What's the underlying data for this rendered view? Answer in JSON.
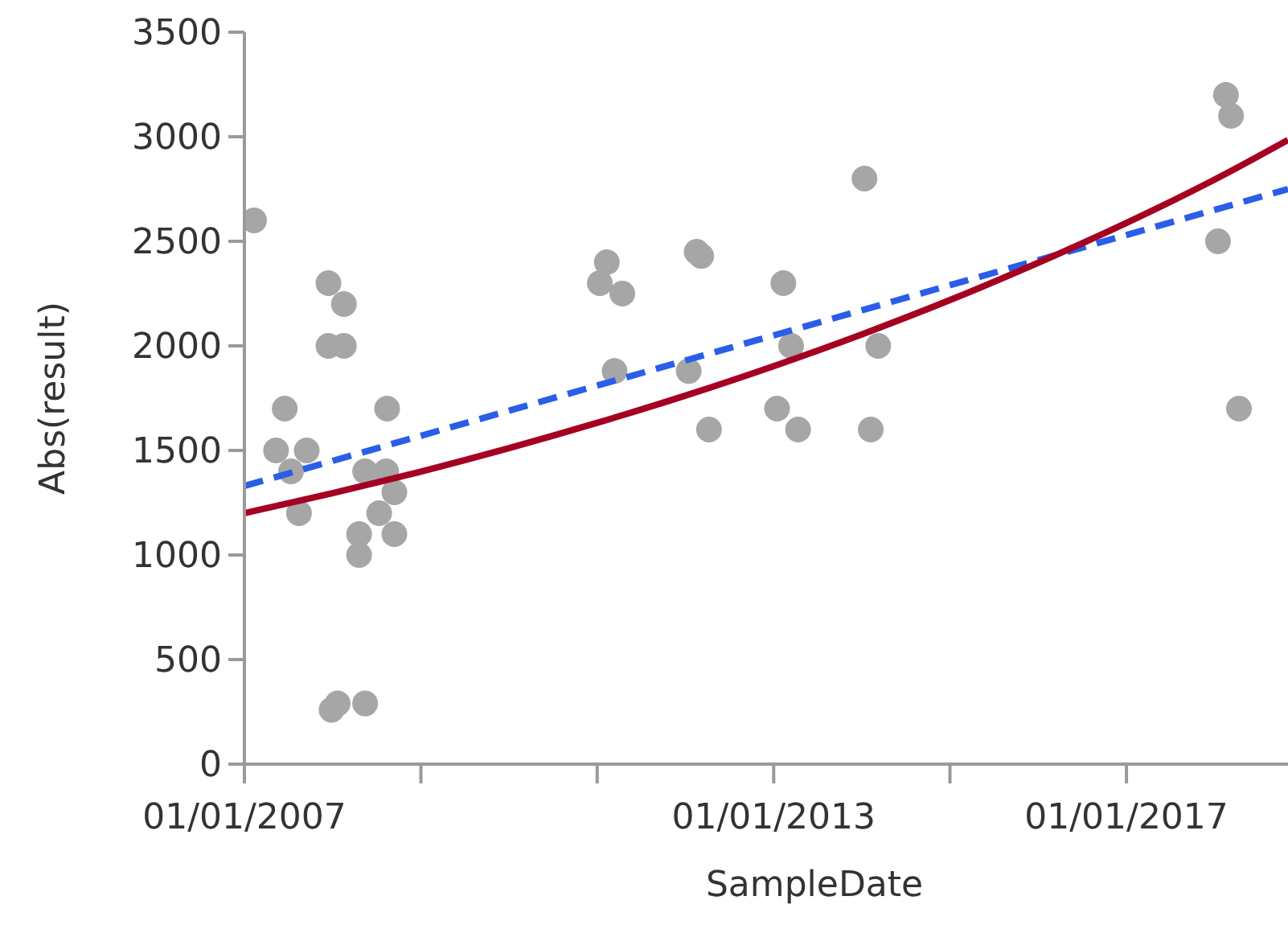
{
  "chart_data": {
    "type": "scatter",
    "xlabel": "SampleDate",
    "ylabel": "Abs(result)",
    "xlim": [
      "2007-01-01",
      "2018-11-01"
    ],
    "xticks": [
      {
        "value": "2007-01-01",
        "label": "01/01/2007"
      },
      {
        "value": "2009-01-01",
        "label": null
      },
      {
        "value": "2011-01-01",
        "label": null
      },
      {
        "value": "2013-01-01",
        "label": "01/01/2013"
      },
      {
        "value": "2015-01-01",
        "label": null
      },
      {
        "value": "2017-01-01",
        "label": "01/01/2017"
      }
    ],
    "ylim": [
      0,
      3500
    ],
    "yticks": [
      0,
      500,
      1000,
      1500,
      2000,
      2500,
      3000,
      3500
    ],
    "grid": false,
    "series": [
      {
        "marker": "circle",
        "color": "#a6a6a6",
        "x": [
          "2007-02-10",
          "2007-12-15",
          "2008-02-17",
          "2007-12-15",
          "2008-02-17",
          "2007-06-17",
          "2008-08-14",
          "2007-05-12",
          "2007-09-16",
          "2007-07-13",
          "2007-08-15",
          "2008-05-15",
          "2008-08-10",
          "2008-09-13",
          "2008-07-12",
          "2008-04-20",
          "2008-09-13",
          "2008-04-20",
          "2007-12-28",
          "2008-01-22",
          "2008-05-15",
          "2011-02-10",
          "2011-01-12",
          "2011-04-15",
          "2011-03-14",
          "2012-02-17",
          "2012-03-07",
          "2012-01-15",
          "2012-04-08",
          "2013-02-10",
          "2013-03-14",
          "2013-01-15",
          "2013-04-12",
          "2014-01-12",
          "2014-03-10",
          "2014-02-07",
          "2018-02-17",
          "2018-03-10",
          "2018-01-15",
          "2018-04-12"
        ],
        "values": [
          2600,
          2300,
          2200,
          2000,
          2000,
          1700,
          1700,
          1500,
          1500,
          1400,
          1200,
          1400,
          1400,
          1300,
          1200,
          1100,
          1100,
          1000,
          260,
          290,
          290,
          2400,
          2300,
          2250,
          1880,
          2450,
          2430,
          1880,
          1600,
          2300,
          2000,
          1700,
          1600,
          2800,
          2000,
          1600,
          3200,
          3100,
          2500,
          1700
        ]
      },
      {
        "type": "line",
        "line_style": "dashed",
        "color": "#2a5ee8",
        "x": [
          "2007-01-01",
          "2018-11-01"
        ],
        "values": [
          1330,
          2750
        ]
      },
      {
        "type": "line",
        "line_style": "solid",
        "color": "#a50021",
        "x": [
          "2007-01-01",
          "2008-01-01",
          "2009-01-01",
          "2010-01-01",
          "2011-01-01",
          "2012-01-01",
          "2013-01-01",
          "2014-01-01",
          "2015-01-01",
          "2016-01-01",
          "2017-01-01",
          "2018-01-01",
          "2018-11-01"
        ],
        "values": [
          1200,
          1296,
          1399,
          1511,
          1632,
          1762,
          1903,
          2055,
          2219,
          2397,
          2588,
          2795,
          2985
        ]
      }
    ]
  }
}
